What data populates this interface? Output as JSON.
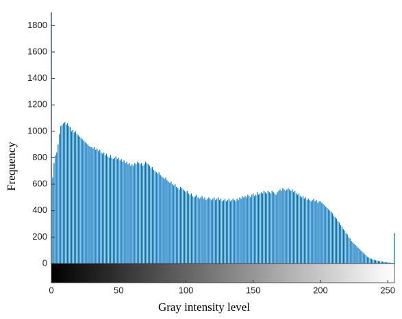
{
  "chart_data": {
    "type": "bar",
    "xlabel": "Gray intensity level",
    "ylabel": "Frequency",
    "x": [
      0,
      1,
      2,
      3,
      4,
      5,
      6,
      7,
      8,
      9,
      10,
      11,
      12,
      13,
      14,
      15,
      16,
      17,
      18,
      19,
      20,
      21,
      22,
      23,
      24,
      25,
      26,
      27,
      28,
      29,
      30,
      31,
      32,
      33,
      34,
      35,
      36,
      37,
      38,
      39,
      40,
      41,
      42,
      43,
      44,
      45,
      46,
      47,
      48,
      49,
      50,
      51,
      52,
      53,
      54,
      55,
      56,
      57,
      58,
      59,
      60,
      61,
      62,
      63,
      64,
      65,
      66,
      67,
      68,
      69,
      70,
      71,
      72,
      73,
      74,
      75,
      76,
      77,
      78,
      79,
      80,
      81,
      82,
      83,
      84,
      85,
      86,
      87,
      88,
      89,
      90,
      91,
      92,
      93,
      94,
      95,
      96,
      97,
      98,
      99,
      100,
      101,
      102,
      103,
      104,
      105,
      106,
      107,
      108,
      109,
      110,
      111,
      112,
      113,
      114,
      115,
      116,
      117,
      118,
      119,
      120,
      121,
      122,
      123,
      124,
      125,
      126,
      127,
      128,
      129,
      130,
      131,
      132,
      133,
      134,
      135,
      136,
      137,
      138,
      139,
      140,
      141,
      142,
      143,
      144,
      145,
      146,
      147,
      148,
      149,
      150,
      151,
      152,
      153,
      154,
      155,
      156,
      157,
      158,
      159,
      160,
      161,
      162,
      163,
      164,
      165,
      166,
      167,
      168,
      169,
      170,
      171,
      172,
      173,
      174,
      175,
      176,
      177,
      178,
      179,
      180,
      181,
      182,
      183,
      184,
      185,
      186,
      187,
      188,
      189,
      190,
      191,
      192,
      193,
      194,
      195,
      196,
      197,
      198,
      199,
      200,
      201,
      202,
      203,
      204,
      205,
      206,
      207,
      208,
      209,
      210,
      211,
      212,
      213,
      214,
      215,
      216,
      217,
      218,
      219,
      220,
      221,
      222,
      223,
      224,
      225,
      226,
      227,
      228,
      229,
      230,
      231,
      232,
      233,
      234,
      235,
      236,
      237,
      238,
      239,
      240,
      241,
      242,
      243,
      244,
      245,
      246,
      247,
      248,
      249,
      250,
      251,
      252,
      253,
      254,
      255
    ],
    "values": [
      1900,
      650,
      760,
      820,
      840,
      900,
      980,
      1040,
      1050,
      1060,
      1070,
      1050,
      1060,
      1040,
      1030,
      1000,
      1010,
      990,
      1000,
      980,
      970,
      960,
      950,
      940,
      930,
      920,
      910,
      900,
      890,
      880,
      880,
      870,
      880,
      860,
      870,
      850,
      860,
      840,
      830,
      840,
      820,
      830,
      810,
      800,
      820,
      800,
      790,
      800,
      810,
      790,
      800,
      780,
      790,
      770,
      780,
      760,
      770,
      750,
      760,
      740,
      750,
      740,
      760,
      750,
      770,
      760,
      750,
      760,
      740,
      750,
      770,
      760,
      750,
      740,
      720,
      730,
      710,
      700,
      690,
      680,
      690,
      670,
      660,
      650,
      640,
      650,
      630,
      620,
      610,
      620,
      600,
      590,
      600,
      580,
      570,
      560,
      580,
      570,
      560,
      550,
      540,
      550,
      530,
      520,
      530,
      510,
      500,
      510,
      520,
      500,
      490,
      500,
      510,
      490,
      500,
      480,
      490,
      500,
      490,
      480,
      490,
      500,
      480,
      490,
      500,
      480,
      490,
      470,
      480,
      490,
      470,
      480,
      490,
      470,
      480,
      490,
      480,
      470,
      490,
      480,
      500,
      490,
      510,
      500,
      510,
      500,
      520,
      510,
      500,
      520,
      530,
      510,
      520,
      540,
      520,
      530,
      540,
      530,
      550,
      540,
      530,
      550,
      540,
      530,
      550,
      540,
      530,
      520,
      540,
      550,
      560,
      550,
      570,
      560,
      550,
      560,
      570,
      560,
      550,
      560,
      540,
      550,
      530,
      520,
      530,
      510,
      500,
      510,
      490,
      500,
      480,
      490,
      480,
      470,
      480,
      490,
      470,
      480,
      460,
      470,
      470,
      460,
      450,
      440,
      430,
      420,
      410,
      400,
      390,
      380,
      360,
      350,
      340,
      320,
      310,
      290,
      280,
      260,
      250,
      230,
      220,
      200,
      190,
      170,
      160,
      150,
      140,
      130,
      120,
      110,
      100,
      90,
      80,
      70,
      60,
      50,
      45,
      40,
      35,
      30,
      28,
      25,
      22,
      20,
      18,
      16,
      14,
      12,
      10,
      10,
      8,
      8,
      6,
      6,
      5,
      230
    ],
    "color": "#0072bd",
    "xlim": [
      0,
      255
    ],
    "ylim": [
      0,
      1900
    ],
    "xticks": [
      0,
      50,
      100,
      150,
      200,
      250
    ],
    "yticks": [
      0,
      200,
      400,
      600,
      800,
      1000,
      1200,
      1400,
      1600,
      1800
    ],
    "colorbar": true
  }
}
